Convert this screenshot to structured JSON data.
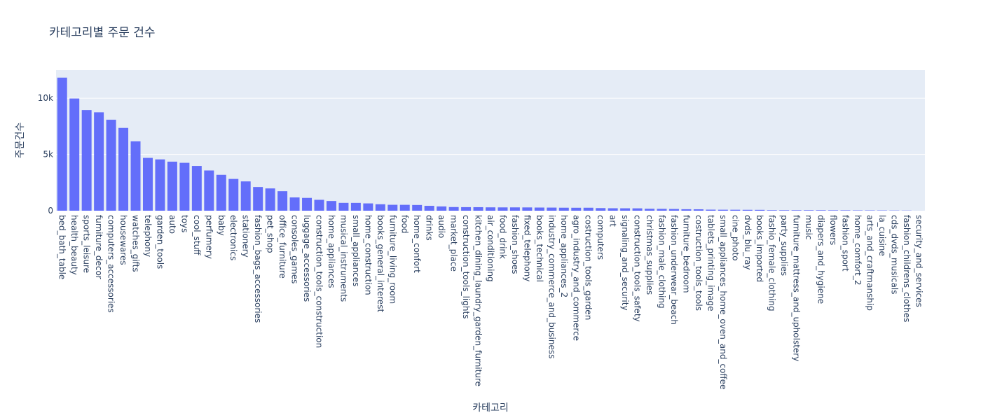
{
  "chart_data": {
    "type": "bar",
    "title": "카테고리별 주문 건수",
    "xlabel": "카테고리",
    "ylabel": "주문건수",
    "ylim": [
      0,
      12500
    ],
    "yticks": [
      0,
      5000,
      10000
    ],
    "ytick_labels": [
      "0",
      "5k",
      "10k"
    ],
    "grid": true,
    "bar_color": "#636efa",
    "plot_bg": "#e5ecf6",
    "grid_color": "#ffffff",
    "categories": [
      "bed_bath_table",
      "health_beauty",
      "sports_leisure",
      "furniture_decor",
      "computers_accessories",
      "housewares",
      "watches_gifts",
      "telephony",
      "garden_tools",
      "auto",
      "toys",
      "cool_stuff",
      "perfumery",
      "baby",
      "electronics",
      "stationery",
      "fashion_bags_accessories",
      "pet_shop",
      "office_furniture",
      "consoles_games",
      "luggage_accessories",
      "construction_tools_construction",
      "home_appliances",
      "musical_instruments",
      "small_appliances",
      "home_construction",
      "books_general_interest",
      "furniture_living_room",
      "food",
      "home_confort",
      "drinks",
      "audio",
      "market_place",
      "construction_tools_lights",
      "kitchen_dining_laundry_garden_furniture",
      "air_conditioning",
      "food_drink",
      "fashion_shoes",
      "fixed_telephony",
      "books_technical",
      "industry_commerce_and_business",
      "home_appliances_2",
      "agro_industry_and_commerce",
      "costruction_tools_garden",
      "computers",
      "art",
      "signaling_and_security",
      "construction_tools_safety",
      "christmas_supplies",
      "fashion_male_clothing",
      "fashion_underwear_beach",
      "furniture_bedroom",
      "costruction_tools_tools",
      "tablets_printing_image",
      "small_appliances_home_oven_and_coffee",
      "cine_photo",
      "dvds_blu_ray",
      "books_imported",
      "fashio_female_clothing",
      "party_supplies",
      "furniture_mattress_and_upholstery",
      "music",
      "diapers_and_hygiene",
      "flowers",
      "fashion_sport",
      "home_comfort_2",
      "arts_and_craftmanship",
      "la_cuisine",
      "cds_dvds_musicals",
      "fashion_childrens_clothes",
      "security_and_services"
    ],
    "values": [
      11823,
      9972,
      8945,
      8744,
      8082,
      7355,
      6161,
      4692,
      4558,
      4358,
      4254,
      3976,
      3575,
      3187,
      2823,
      2603,
      2105,
      1979,
      1732,
      1179,
      1137,
      967,
      861,
      696,
      694,
      649,
      573,
      525,
      522,
      508,
      433,
      380,
      325,
      316,
      313,
      298,
      294,
      295,
      291,
      280,
      276,
      266,
      262,
      264,
      232,
      218,
      214,
      210,
      172,
      164,
      152,
      131,
      125,
      93,
      86,
      84,
      78,
      74,
      47,
      45,
      45,
      45,
      45,
      40,
      38,
      31,
      30,
      27,
      21,
      17,
      2
    ]
  }
}
